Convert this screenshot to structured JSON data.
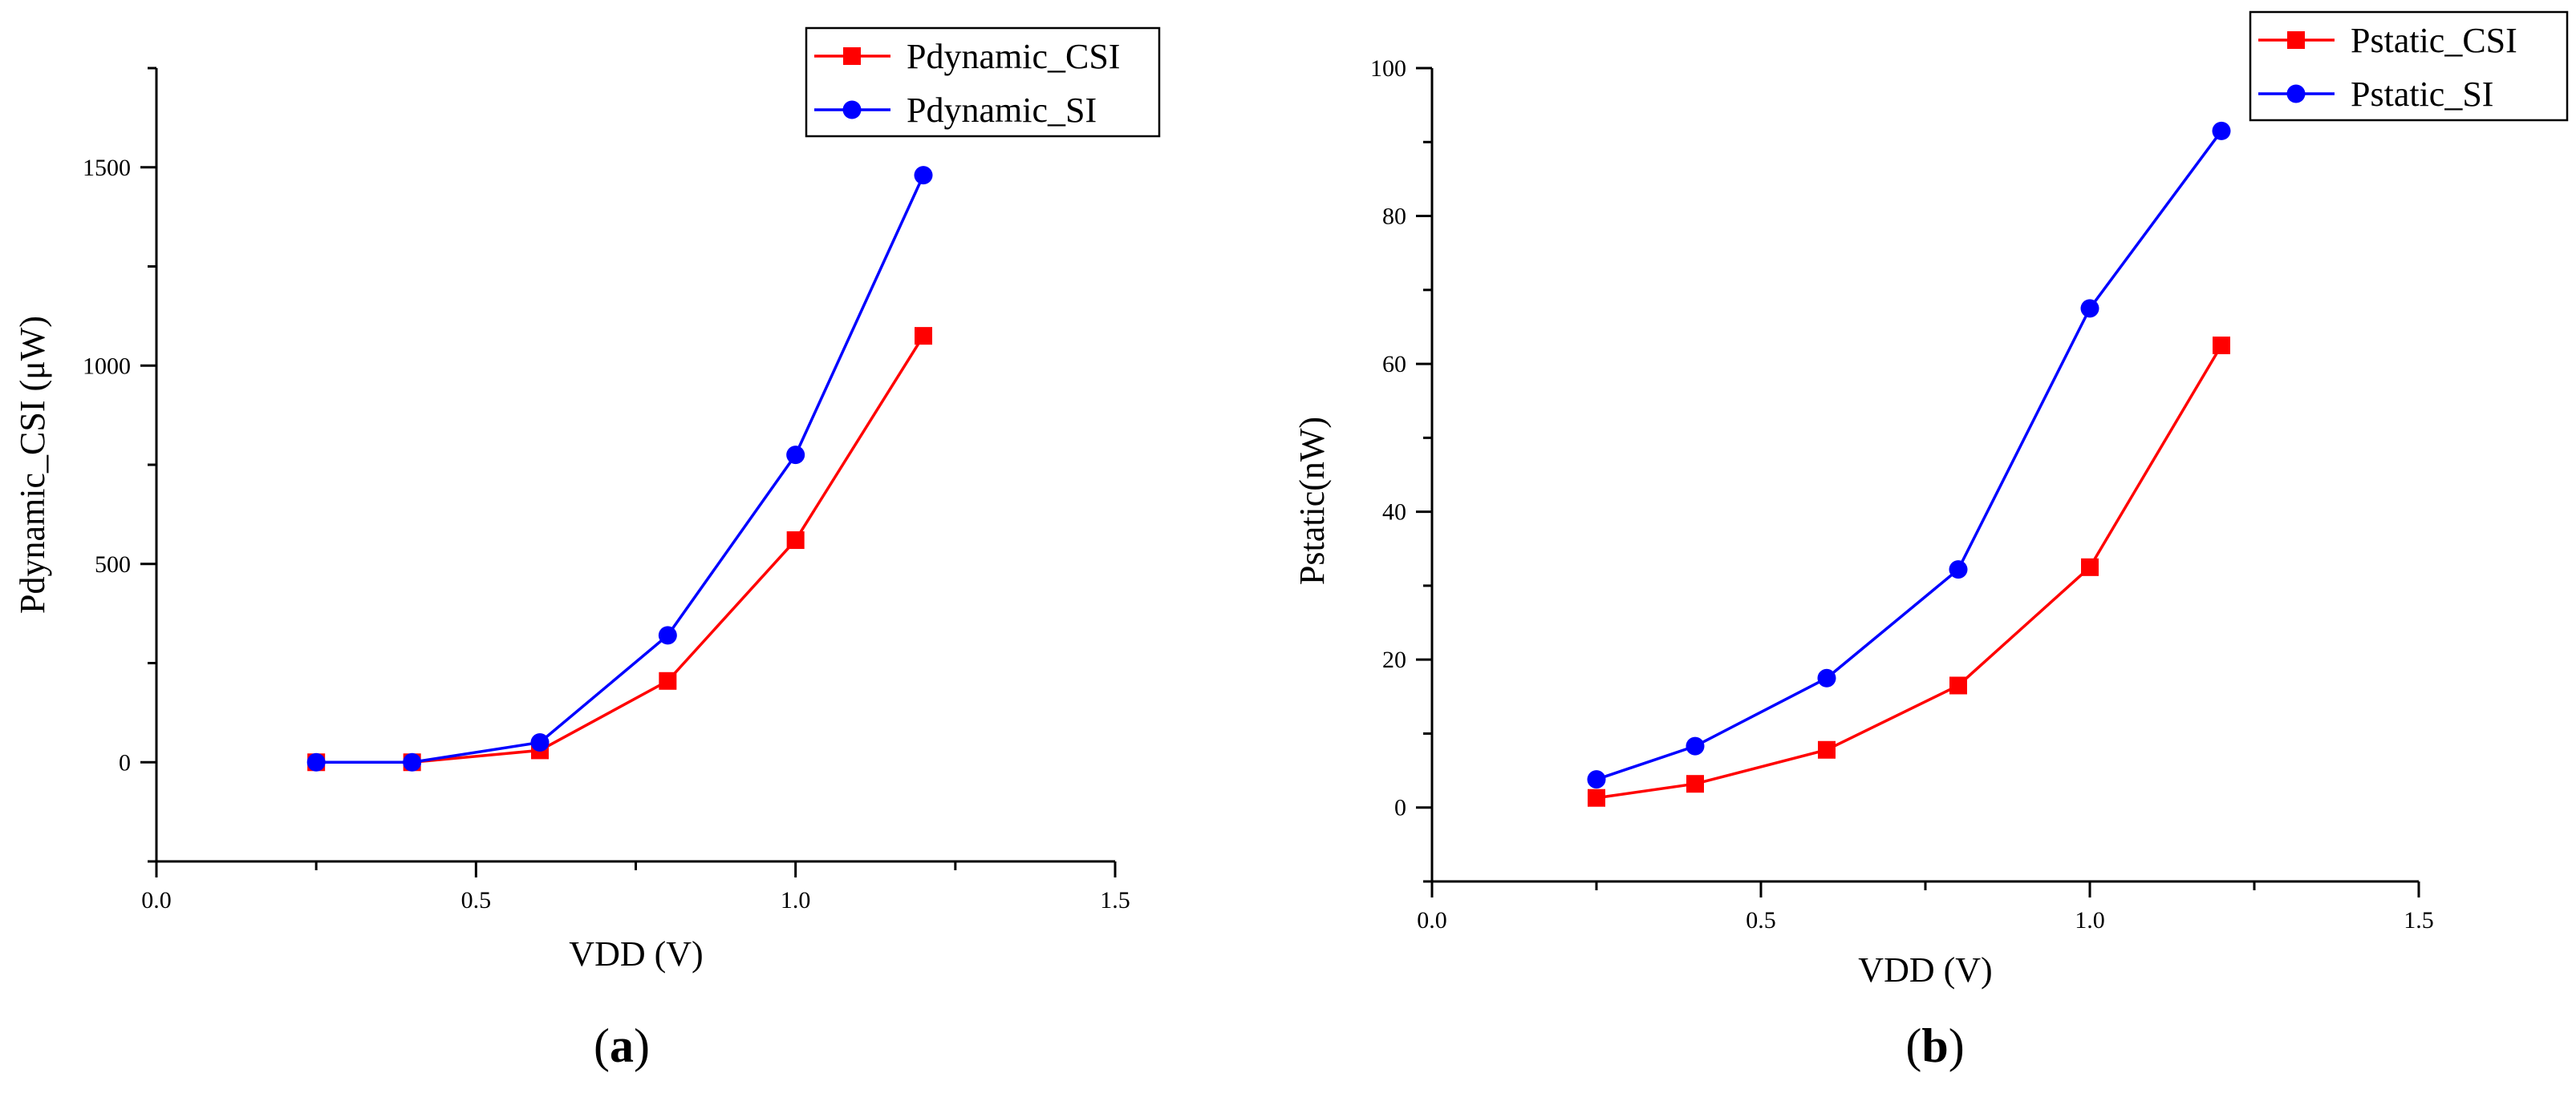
{
  "chart_data": [
    {
      "type": "line",
      "panel_label": {
        "open": "(",
        "letter": "a",
        "close": ")"
      },
      "xlabel": "VDD (V)",
      "ylabel": "Pdynamic_CSI (μW)",
      "xlim": [
        0.0,
        1.5
      ],
      "ylim": [
        -250,
        1750
      ],
      "xticks": [
        0.0,
        0.5,
        1.0,
        1.5
      ],
      "xtick_labels": [
        "0.0",
        "0.5",
        "1.0",
        "1.5"
      ],
      "yticks": [
        0,
        500,
        1000,
        1500
      ],
      "ytick_labels": [
        "0",
        "500",
        "1000",
        "1500"
      ],
      "legend_position": "top-right",
      "series": [
        {
          "name": "Pdynamic_CSI",
          "color": "#ff0000",
          "marker": "square",
          "x": [
            0.25,
            0.4,
            0.6,
            0.8,
            1.0,
            1.2
          ],
          "y": [
            0,
            0,
            30,
            205,
            560,
            1075
          ]
        },
        {
          "name": "Pdynamic_SI",
          "color": "#0000ff",
          "marker": "circle",
          "x": [
            0.25,
            0.4,
            0.6,
            0.8,
            1.0,
            1.2
          ],
          "y": [
            0,
            0,
            50,
            320,
            775,
            1480
          ]
        }
      ]
    },
    {
      "type": "line",
      "panel_label": {
        "open": "(",
        "letter": "b",
        "close": ")"
      },
      "xlabel": "VDD (V)",
      "ylabel": "Pstatic(nW)",
      "xlim": [
        0.0,
        1.5
      ],
      "ylim": [
        -10,
        100
      ],
      "xticks": [
        0.0,
        0.5,
        1.0,
        1.5
      ],
      "xtick_labels": [
        "0.0",
        "0.5",
        "1.0",
        "1.5"
      ],
      "yticks": [
        0,
        20,
        40,
        60,
        80,
        100
      ],
      "ytick_labels": [
        "0",
        "20",
        "40",
        "60",
        "80",
        "100"
      ],
      "legend_position": "top-right",
      "series": [
        {
          "name": "Pstatic_CSI",
          "color": "#ff0000",
          "marker": "square",
          "x": [
            0.25,
            0.4,
            0.6,
            0.8,
            1.0,
            1.2
          ],
          "y": [
            1.3,
            3.2,
            7.8,
            16.5,
            32.5,
            62.5
          ]
        },
        {
          "name": "Pstatic_SI",
          "color": "#0000ff",
          "marker": "circle",
          "x": [
            0.25,
            0.4,
            0.6,
            0.8,
            1.0,
            1.2
          ],
          "y": [
            3.8,
            8.3,
            17.5,
            32.2,
            67.5,
            91.5
          ]
        }
      ]
    }
  ]
}
